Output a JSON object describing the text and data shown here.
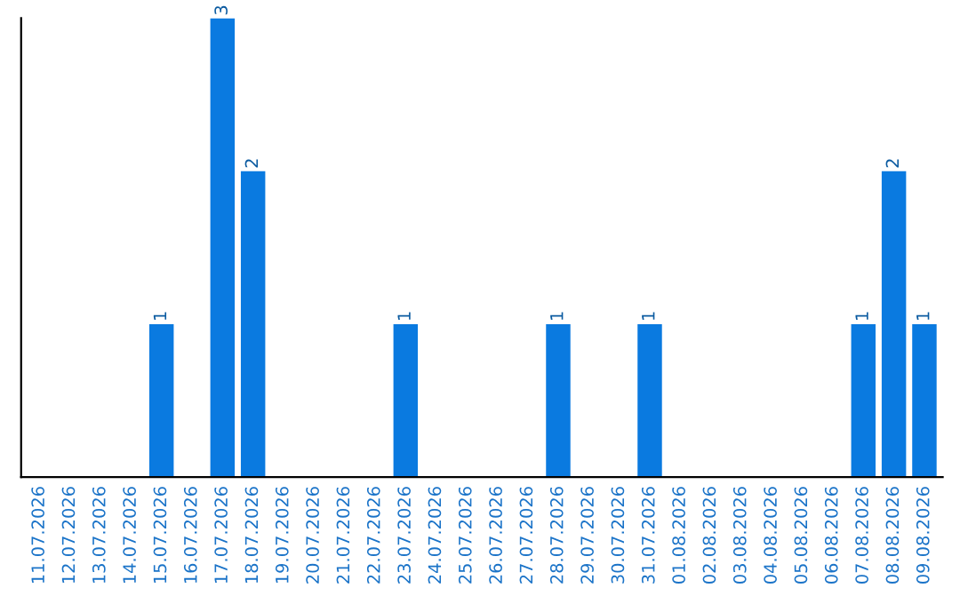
{
  "chart_data": {
    "type": "bar",
    "categories": [
      "11.07.2026",
      "12.07.2026",
      "13.07.2026",
      "14.07.2026",
      "15.07.2026",
      "16.07.2026",
      "17.07.2026",
      "18.07.2026",
      "19.07.2026",
      "20.07.2026",
      "21.07.2026",
      "22.07.2026",
      "23.07.2026",
      "24.07.2026",
      "25.07.2026",
      "26.07.2026",
      "27.07.2026",
      "28.07.2026",
      "29.07.2026",
      "30.07.2026",
      "31.07.2026",
      "01.08.2026",
      "02.08.2026",
      "03.08.2026",
      "04.08.2026",
      "05.08.2026",
      "06.08.2026",
      "07.08.2026",
      "08.08.2026",
      "09.08.2026"
    ],
    "values": [
      0,
      0,
      0,
      0,
      1,
      0,
      3,
      2,
      0,
      0,
      0,
      0,
      1,
      0,
      0,
      0,
      0,
      1,
      0,
      0,
      1,
      0,
      0,
      0,
      0,
      0,
      0,
      1,
      2,
      1
    ],
    "value_labels": [
      null,
      null,
      null,
      null,
      "1",
      null,
      "3",
      "2",
      null,
      null,
      null,
      null,
      "1",
      null,
      null,
      null,
      null,
      "1",
      null,
      null,
      "1",
      null,
      null,
      null,
      null,
      null,
      null,
      "1",
      "2",
      "1"
    ],
    "color": "#0a7ae0",
    "grid": false,
    "legend": false,
    "tick_labels": "x"
  }
}
